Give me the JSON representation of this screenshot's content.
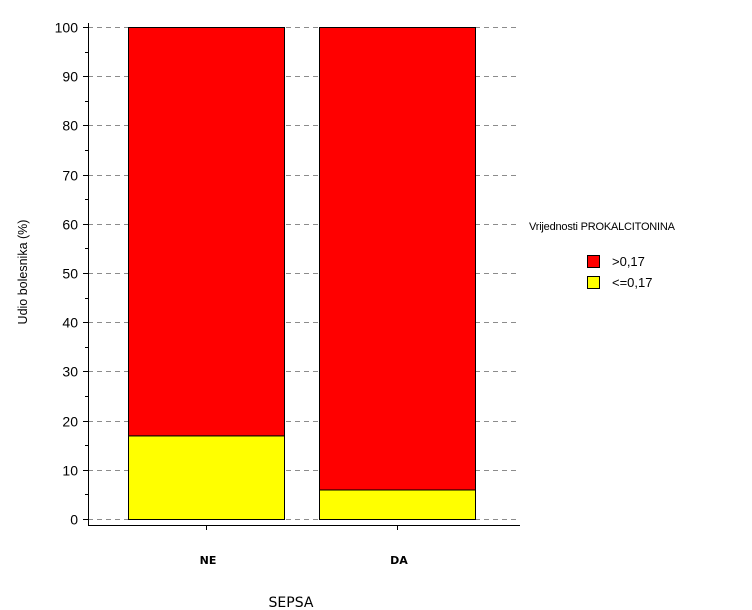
{
  "chart_data": {
    "type": "bar",
    "stacked": true,
    "categories": [
      "NE",
      "DA"
    ],
    "series": [
      {
        "name": "<=0,17",
        "values": [
          17,
          6
        ],
        "color": "#ffff00"
      },
      {
        "name": ">0,17",
        "values": [
          83,
          94
        ],
        "color": "#ff0000"
      }
    ],
    "legend_title": "Vrijednosti PROKALCITONINA",
    "legend_order": [
      ">0,17",
      "<=0,17"
    ],
    "legend_position": "right",
    "xlabel": "SEPSA",
    "ylabel": "Udio bolesnika (%)",
    "ylim": [
      0,
      100
    ],
    "yticks": [
      0,
      10,
      20,
      30,
      40,
      50,
      60,
      70,
      80,
      90,
      100
    ],
    "grid": "horizontal dashed"
  }
}
